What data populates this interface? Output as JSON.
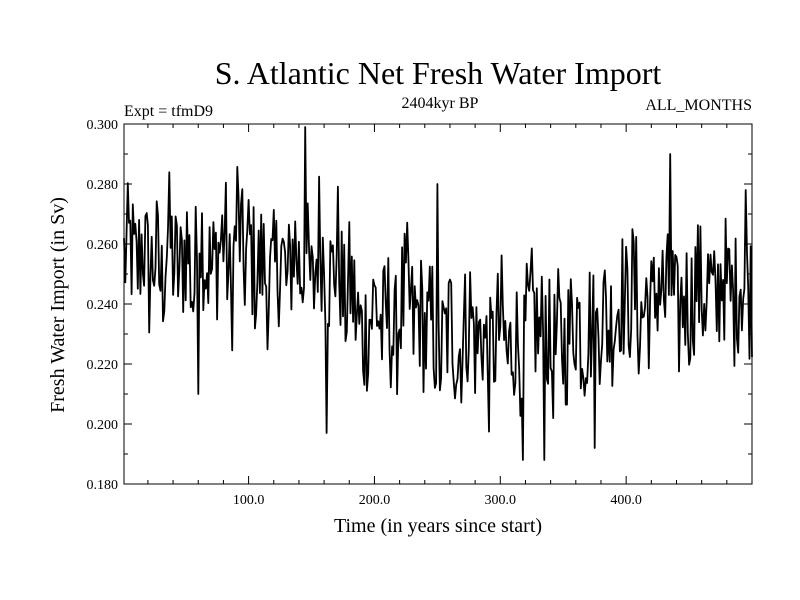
{
  "chart_data": {
    "type": "line",
    "title": "S. Atlantic Net Fresh Water Import",
    "subtitle": "2404kyr BP",
    "annotation_left": "Expt = tfmD9",
    "annotation_right": "ALL_MONTHS",
    "xlabel": "Time (in years since start)",
    "ylabel": "Fresh Water Import (in Sv)",
    "xlim": [
      1,
      500
    ],
    "ylim": [
      0.18,
      0.3
    ],
    "xticks": [
      100,
      200,
      300,
      400
    ],
    "xtick_labels": [
      "100.0",
      "200.0",
      "300.0",
      "400.0"
    ],
    "yticks": [
      0.18,
      0.2,
      0.22,
      0.24,
      0.26,
      0.28,
      0.3
    ],
    "ytick_labels": [
      "0.180",
      "0.200",
      "0.220",
      "0.240",
      "0.260",
      "0.280",
      "0.300"
    ],
    "grid": false,
    "series": [
      {
        "name": "fresh water import",
        "x_start": 1,
        "x_step": 5,
        "values": [
          0.255,
          0.26,
          0.25,
          0.262,
          0.248,
          0.258,
          0.245,
          0.265,
          0.253,
          0.25,
          0.262,
          0.242,
          0.268,
          0.255,
          0.25,
          0.258,
          0.265,
          0.24,
          0.272,
          0.252,
          0.26,
          0.248,
          0.255,
          0.245,
          0.25,
          0.258,
          0.244,
          0.262,
          0.25,
          0.255,
          0.242,
          0.265,
          0.252,
          0.248,
          0.26,
          0.238,
          0.248,
          0.235,
          0.228,
          0.235,
          0.242,
          0.23,
          0.238,
          0.225,
          0.24,
          0.245,
          0.232,
          0.238,
          0.228,
          0.235,
          0.22,
          0.228,
          0.235,
          0.222,
          0.23,
          0.238,
          0.225,
          0.232,
          0.218,
          0.228,
          0.235,
          0.22,
          0.23,
          0.225,
          0.232,
          0.238,
          0.228,
          0.235,
          0.22,
          0.23,
          0.225,
          0.232,
          0.238,
          0.226,
          0.235,
          0.228,
          0.24,
          0.232,
          0.236,
          0.245,
          0.238,
          0.248,
          0.232,
          0.242,
          0.236,
          0.25,
          0.24,
          0.246,
          0.232,
          0.244,
          0.238,
          0.25,
          0.242,
          0.248,
          0.236,
          0.252,
          0.245,
          0.24,
          0.25,
          0.244
        ]
      }
    ],
    "annotations": [
      {
        "x": 60,
        "y": 0.21
      },
      {
        "x": 145,
        "y": 0.299
      },
      {
        "x": 162,
        "y": 0.197
      },
      {
        "x": 250,
        "y": 0.28
      },
      {
        "x": 318,
        "y": 0.188
      },
      {
        "x": 335,
        "y": 0.188
      },
      {
        "x": 375,
        "y": 0.192
      },
      {
        "x": 435,
        "y": 0.29
      },
      {
        "x": 495,
        "y": 0.278
      }
    ]
  }
}
